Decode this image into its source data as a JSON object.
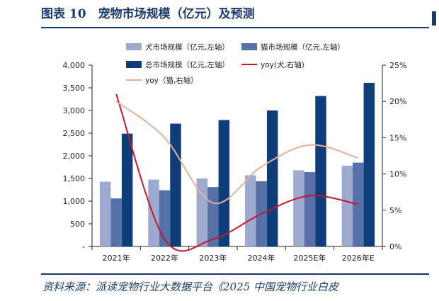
{
  "header": {
    "title": "图表 10　宠物市场规模（亿元）及预测"
  },
  "footer": {
    "source": "资料来源：派读宠物行业大数据平台《2025 中国宠物行业白皮"
  },
  "chart_data": {
    "type": "bar",
    "categories": [
      "2021年",
      "2022年",
      "2023年",
      "2024年",
      "2025E年",
      "2026年E"
    ],
    "series": [
      {
        "name": "犬市场规模（亿元,左轴）",
        "kind": "bar",
        "axis": "left",
        "color": "#9ea9d0",
        "values": [
          1430,
          1475,
          1500,
          1570,
          1680,
          1780
        ]
      },
      {
        "name": "猫市场规模（亿元,左轴）",
        "kind": "bar",
        "axis": "left",
        "color": "#5671a8",
        "values": [
          1060,
          1240,
          1310,
          1440,
          1640,
          1850
        ]
      },
      {
        "name": "总市场规模（亿元,左轴）",
        "kind": "bar",
        "axis": "left",
        "color": "#0e3d7a",
        "values": [
          2490,
          2710,
          2790,
          3000,
          3320,
          3610
        ]
      },
      {
        "name": "yoy(犬,右轴)",
        "kind": "line",
        "axis": "right",
        "color": "#c0182c",
        "values": [
          21.0,
          1.0,
          1.0,
          4.5,
          7.0,
          5.8
        ]
      },
      {
        "name": "yoy（猫,右轴）",
        "kind": "line",
        "axis": "right",
        "color": "#e4b09a",
        "values": [
          20.0,
          15.0,
          6.0,
          11.0,
          14.0,
          12.2
        ]
      }
    ],
    "y_left": {
      "ticks": [
        0,
        500,
        1000,
        1500,
        2000,
        2500,
        3000,
        3500,
        4000
      ],
      "tick_labels": [
        "-",
        "500",
        "1,000",
        "1,500",
        "2,000",
        "2,500",
        "3,000",
        "3,500",
        "4,000"
      ],
      "range": [
        0,
        4000
      ]
    },
    "y_right": {
      "ticks": [
        0,
        5,
        10,
        15,
        20,
        25
      ],
      "tick_labels": [
        "0%",
        "5%",
        "10%",
        "15%",
        "20%",
        "25%"
      ],
      "range": [
        0,
        25
      ]
    },
    "grid": false,
    "legend_position": "top"
  }
}
